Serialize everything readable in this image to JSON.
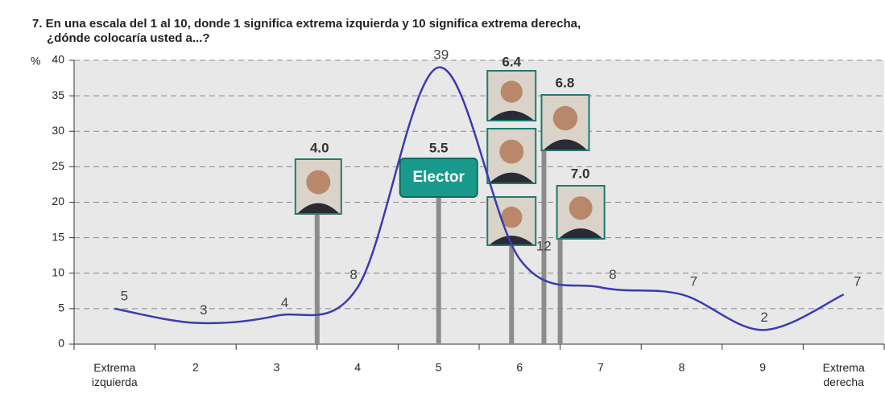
{
  "chart_data": {
    "type": "line",
    "title": "7. En una escala del 1 al 10, donde 1 significa extrema izquierda y 10 significa extrema derecha, ¿dónde colocaría usted a...?",
    "y_label": "%",
    "categories": [
      "Extrema izquierda",
      "2",
      "3",
      "4",
      "5",
      "6",
      "7",
      "8",
      "9",
      "Extrema derecha"
    ],
    "series": [
      {
        "name": null,
        "color": "#3b3bb0",
        "values": [
          5,
          3,
          4,
          8,
          39,
          12,
          8,
          7,
          2,
          7
        ]
      }
    ],
    "ylim": [
      0,
      40
    ],
    "yticks": [
      0,
      5,
      10,
      15,
      20,
      25,
      30,
      35,
      40
    ],
    "grid": true,
    "markers": [
      {
        "value": 4.0,
        "label": "4.0"
      },
      {
        "value": 5.5,
        "label": "5.5",
        "name": "Elector"
      },
      {
        "value": 6.4,
        "label": "6.4"
      },
      {
        "value": 6.8,
        "label": "6.8"
      },
      {
        "value": 7.0,
        "label": "7.0"
      }
    ]
  }
}
